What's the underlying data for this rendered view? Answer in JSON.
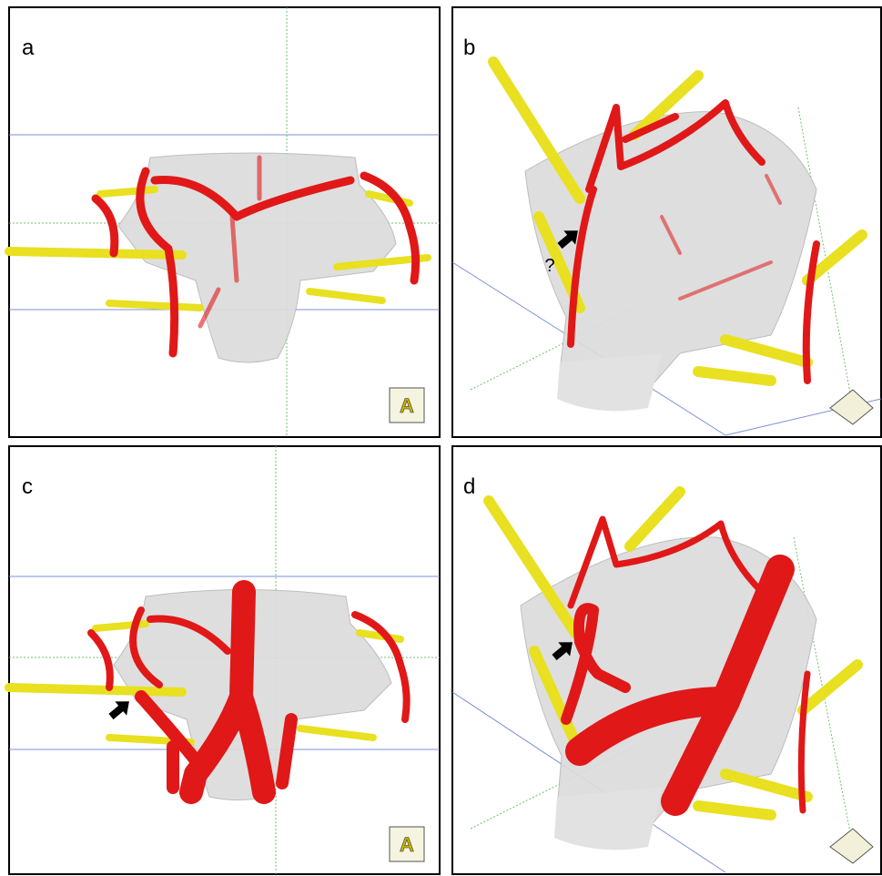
{
  "panels": [
    {
      "label": "a",
      "orientation": "A"
    },
    {
      "label": "b",
      "annotation": "?"
    },
    {
      "label": "c",
      "orientation": "A"
    },
    {
      "label": "d"
    }
  ]
}
